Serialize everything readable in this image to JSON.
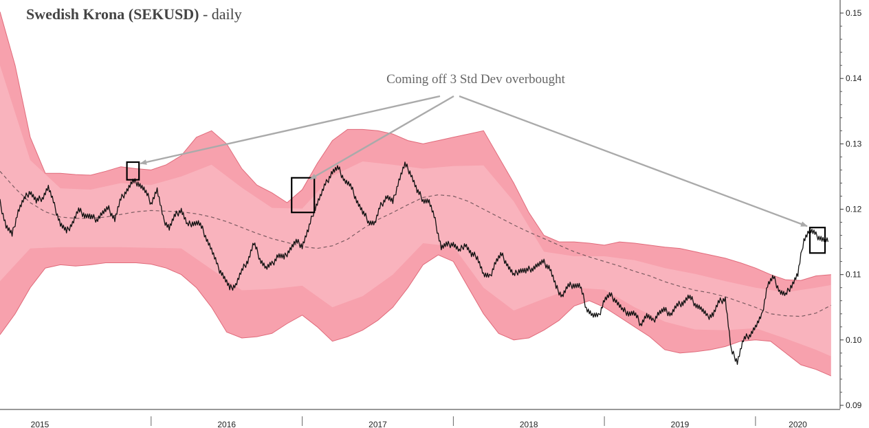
{
  "chart_data": {
    "type": "line",
    "title": "Swedish Krona (SEKUSD)",
    "subtitle": "daily",
    "xlabel": "",
    "ylabel": "",
    "x_tick_labels": [
      "2015",
      "2016",
      "2017",
      "2018",
      "2019",
      "2020"
    ],
    "y_tick_labels": [
      "0.15",
      "0.14",
      "0.13",
      "0.12",
      "0.11",
      "0.10",
      "0.09"
    ],
    "ylim": [
      0.09,
      0.152
    ],
    "xlim": [
      2015.0,
      2020.56
    ],
    "grid": false,
    "annotation": {
      "text": "Coming off 3 Std Dev overbought",
      "boxes": [
        {
          "x": [
            2015.84,
            2015.92
          ],
          "y": [
            0.1245,
            0.1272
          ]
        },
        {
          "x": [
            2016.93,
            2017.08
          ],
          "y": [
            0.1195,
            0.1248
          ]
        },
        {
          "x": [
            2020.36,
            2020.46
          ],
          "y": [
            0.1133,
            0.1172
          ]
        }
      ]
    },
    "series": [
      {
        "role": "price",
        "x": [
          2015.0,
          2015.04,
          2015.08,
          2015.12,
          2015.16,
          2015.2,
          2015.24,
          2015.28,
          2015.32,
          2015.36,
          2015.4,
          2015.44,
          2015.48,
          2015.52,
          2015.56,
          2015.6,
          2015.64,
          2015.68,
          2015.72,
          2015.76,
          2015.8,
          2015.84,
          2015.88,
          2015.92,
          2015.96,
          2016.0,
          2016.04,
          2016.08,
          2016.12,
          2016.16,
          2016.2,
          2016.24,
          2016.28,
          2016.32,
          2016.36,
          2016.4,
          2016.44,
          2016.48,
          2016.52,
          2016.56,
          2016.6,
          2016.64,
          2016.68,
          2016.72,
          2016.76,
          2016.8,
          2016.84,
          2016.88,
          2016.92,
          2016.96,
          2017.0,
          2017.04,
          2017.08,
          2017.12,
          2017.16,
          2017.2,
          2017.24,
          2017.28,
          2017.32,
          2017.36,
          2017.4,
          2017.44,
          2017.48,
          2017.52,
          2017.56,
          2017.6,
          2017.64,
          2017.68,
          2017.72,
          2017.76,
          2017.8,
          2017.84,
          2017.88,
          2017.92,
          2017.96,
          2018.0,
          2018.04,
          2018.08,
          2018.12,
          2018.16,
          2018.2,
          2018.24,
          2018.28,
          2018.32,
          2018.36,
          2018.4,
          2018.44,
          2018.48,
          2018.52,
          2018.56,
          2018.6,
          2018.64,
          2018.68,
          2018.72,
          2018.76,
          2018.8,
          2018.84,
          2018.88,
          2018.92,
          2018.96,
          2019.0,
          2019.04,
          2019.08,
          2019.12,
          2019.16,
          2019.2,
          2019.24,
          2019.28,
          2019.32,
          2019.36,
          2019.4,
          2019.44,
          2019.48,
          2019.52,
          2019.56,
          2019.6,
          2019.64,
          2019.68,
          2019.72,
          2019.76,
          2019.8,
          2019.84,
          2019.88,
          2019.92,
          2019.96,
          2020.0,
          2020.04,
          2020.08,
          2020.12,
          2020.16,
          2020.2,
          2020.24,
          2020.28,
          2020.32,
          2020.36,
          2020.4,
          2020.44,
          2020.48
        ],
        "values": [
          0.121,
          0.1175,
          0.116,
          0.1198,
          0.1215,
          0.1228,
          0.1212,
          0.1218,
          0.1234,
          0.1205,
          0.1178,
          0.1165,
          0.118,
          0.1198,
          0.1192,
          0.1188,
          0.1185,
          0.1195,
          0.12,
          0.1185,
          0.1215,
          0.123,
          0.1242,
          0.124,
          0.1228,
          0.121,
          0.123,
          0.1185,
          0.1172,
          0.119,
          0.12,
          0.1175,
          0.118,
          0.1178,
          0.116,
          0.1138,
          0.1112,
          0.1098,
          0.1078,
          0.1085,
          0.1105,
          0.1122,
          0.1148,
          0.1125,
          0.111,
          0.1115,
          0.113,
          0.1125,
          0.114,
          0.115,
          0.1145,
          0.1168,
          0.12,
          0.122,
          0.124,
          0.1258,
          0.1262,
          0.1245,
          0.1235,
          0.1215,
          0.1195,
          0.1182,
          0.1178,
          0.1205,
          0.122,
          0.121,
          0.1245,
          0.1268,
          0.1255,
          0.1228,
          0.1215,
          0.1212,
          0.1182,
          0.1142,
          0.1145,
          0.1148,
          0.1135,
          0.1148,
          0.113,
          0.1128,
          0.11,
          0.1095,
          0.112,
          0.113,
          0.1115,
          0.1098,
          0.1108,
          0.1105,
          0.111,
          0.1115,
          0.1118,
          0.111,
          0.108,
          0.1068,
          0.1082,
          0.1085,
          0.1082,
          0.105,
          0.1038,
          0.1035,
          0.1062,
          0.1068,
          0.106,
          0.1045,
          0.1042,
          0.104,
          0.1025,
          0.1038,
          0.1028,
          0.1042,
          0.1045,
          0.104,
          0.1052,
          0.1058,
          0.1066,
          0.1056,
          0.1048,
          0.1035,
          0.104,
          0.1058,
          0.1064,
          0.0982,
          0.0968,
          0.1,
          0.1008,
          0.102,
          0.1035,
          0.1085,
          0.1095,
          0.1075,
          0.1068,
          0.1085,
          0.11,
          0.1155,
          0.1168,
          0.116,
          0.1155,
          0.115
        ]
      },
      {
        "role": "moving-average",
        "x": [
          2015.0,
          2015.1,
          2015.2,
          2015.3,
          2015.4,
          2015.5,
          2015.6,
          2015.7,
          2015.8,
          2015.9,
          2016.0,
          2016.1,
          2016.2,
          2016.3,
          2016.4,
          2016.5,
          2016.6,
          2016.7,
          2016.8,
          2016.9,
          2017.0,
          2017.1,
          2017.2,
          2017.3,
          2017.4,
          2017.5,
          2017.6,
          2017.7,
          2017.8,
          2017.9,
          2018.0,
          2018.1,
          2018.2,
          2018.3,
          2018.4,
          2018.5,
          2018.6,
          2018.7,
          2018.8,
          2018.9,
          2019.0,
          2019.1,
          2019.2,
          2019.3,
          2019.4,
          2019.5,
          2019.6,
          2019.7,
          2019.8,
          2019.9,
          2020.0,
          2020.1,
          2020.2,
          2020.3,
          2020.4,
          2020.5
        ],
        "values": [
          0.1258,
          0.1232,
          0.121,
          0.1196,
          0.1188,
          0.1186,
          0.1186,
          0.1188,
          0.1192,
          0.1196,
          0.1198,
          0.1197,
          0.1196,
          0.1193,
          0.1188,
          0.1181,
          0.1172,
          0.1163,
          0.1155,
          0.1149,
          0.1143,
          0.114,
          0.1144,
          0.1154,
          0.117,
          0.1184,
          0.1195,
          0.1207,
          0.1218,
          0.1222,
          0.122,
          0.1212,
          0.12,
          0.1188,
          0.1176,
          0.1165,
          0.1155,
          0.1145,
          0.1135,
          0.1127,
          0.112,
          0.1113,
          0.1105,
          0.1098,
          0.1089,
          0.1082,
          0.1076,
          0.1072,
          0.1066,
          0.1058,
          0.105,
          0.104,
          0.1037,
          0.1036,
          0.1041,
          0.1053
        ]
      },
      {
        "role": "band-upper-3sd",
        "x": [
          2015.0,
          2015.1,
          2015.2,
          2015.3,
          2015.4,
          2015.5,
          2015.6,
          2015.7,
          2015.8,
          2015.9,
          2016.0,
          2016.1,
          2016.2,
          2016.3,
          2016.4,
          2016.5,
          2016.6,
          2016.7,
          2016.8,
          2016.9,
          2017.0,
          2017.1,
          2017.2,
          2017.3,
          2017.4,
          2017.5,
          2017.6,
          2017.7,
          2017.8,
          2017.9,
          2018.0,
          2018.1,
          2018.2,
          2018.3,
          2018.4,
          2018.5,
          2018.6,
          2018.7,
          2018.8,
          2018.9,
          2019.0,
          2019.1,
          2019.2,
          2019.3,
          2019.4,
          2019.5,
          2019.6,
          2019.7,
          2019.8,
          2019.9,
          2020.0,
          2020.1,
          2020.2,
          2020.3,
          2020.4,
          2020.5
        ],
        "values": [
          0.1502,
          0.142,
          0.131,
          0.1255,
          0.1255,
          0.1253,
          0.1252,
          0.1258,
          0.1265,
          0.1262,
          0.126,
          0.1268,
          0.1282,
          0.131,
          0.132,
          0.13,
          0.1262,
          0.1237,
          0.1225,
          0.121,
          0.123,
          0.127,
          0.1305,
          0.1322,
          0.1322,
          0.132,
          0.1315,
          0.1305,
          0.13,
          0.1305,
          0.131,
          0.1315,
          0.132,
          0.128,
          0.124,
          0.1195,
          0.116,
          0.115,
          0.115,
          0.1148,
          0.1145,
          0.115,
          0.1148,
          0.1145,
          0.1142,
          0.114,
          0.1135,
          0.113,
          0.1125,
          0.1118,
          0.111,
          0.11,
          0.1092,
          0.1091,
          0.1098,
          0.11
        ]
      },
      {
        "role": "band-lower-3sd",
        "x": [
          2015.0,
          2015.1,
          2015.2,
          2015.3,
          2015.4,
          2015.5,
          2015.6,
          2015.7,
          2015.8,
          2015.9,
          2016.0,
          2016.1,
          2016.2,
          2016.3,
          2016.4,
          2016.5,
          2016.6,
          2016.7,
          2016.8,
          2016.9,
          2017.0,
          2017.1,
          2017.2,
          2017.3,
          2017.4,
          2017.5,
          2017.6,
          2017.7,
          2017.8,
          2017.9,
          2018.0,
          2018.1,
          2018.2,
          2018.3,
          2018.4,
          2018.5,
          2018.6,
          2018.7,
          2018.8,
          2018.9,
          2019.0,
          2019.1,
          2019.2,
          2019.3,
          2019.4,
          2019.5,
          2019.6,
          2019.7,
          2019.8,
          2019.9,
          2020.0,
          2020.1,
          2020.2,
          2020.3,
          2020.4,
          2020.5
        ],
        "values": [
          0.1008,
          0.104,
          0.108,
          0.111,
          0.1115,
          0.1113,
          0.1115,
          0.1118,
          0.1118,
          0.1118,
          0.1116,
          0.111,
          0.11,
          0.108,
          0.105,
          0.1012,
          0.1003,
          0.1005,
          0.101,
          0.1025,
          0.1038,
          0.102,
          0.0998,
          0.1005,
          0.1015,
          0.103,
          0.105,
          0.108,
          0.1115,
          0.113,
          0.112,
          0.108,
          0.104,
          0.101,
          0.1,
          0.1003,
          0.1015,
          0.103,
          0.1052,
          0.106,
          0.105,
          0.1035,
          0.102,
          0.1005,
          0.0985,
          0.098,
          0.0982,
          0.0985,
          0.099,
          0.0998,
          0.1,
          0.0998,
          0.098,
          0.0962,
          0.0955,
          0.0945
        ]
      },
      {
        "role": "band-upper-2sd",
        "x": [
          2015.0,
          2015.2,
          2015.4,
          2015.6,
          2015.8,
          2016.0,
          2016.2,
          2016.4,
          2016.6,
          2016.8,
          2017.0,
          2017.2,
          2017.4,
          2017.6,
          2017.8,
          2018.0,
          2018.2,
          2018.4,
          2018.6,
          2018.8,
          2019.0,
          2019.2,
          2019.4,
          2019.6,
          2019.8,
          2020.0,
          2020.2,
          2020.4,
          2020.5
        ],
        "values": [
          0.142,
          0.1275,
          0.1232,
          0.123,
          0.124,
          0.1237,
          0.125,
          0.1268,
          0.1233,
          0.1202,
          0.1201,
          0.1251,
          0.1273,
          0.1268,
          0.1262,
          0.1266,
          0.1267,
          0.1212,
          0.1135,
          0.1128,
          0.1128,
          0.1122,
          0.111,
          0.1101,
          0.109,
          0.108,
          0.1073,
          0.108,
          0.1084
        ]
      },
      {
        "role": "band-lower-2sd",
        "x": [
          2015.0,
          2015.2,
          2015.4,
          2015.6,
          2015.8,
          2016.0,
          2016.2,
          2016.4,
          2016.6,
          2016.8,
          2017.0,
          2017.2,
          2017.4,
          2017.6,
          2017.8,
          2018.0,
          2018.2,
          2018.4,
          2018.6,
          2018.8,
          2019.0,
          2019.2,
          2019.4,
          2019.6,
          2019.8,
          2020.0,
          2020.2,
          2020.4,
          2020.5
        ],
        "values": [
          0.109,
          0.114,
          0.1142,
          0.1142,
          0.1142,
          0.1141,
          0.114,
          0.1108,
          0.1076,
          0.1078,
          0.1083,
          0.105,
          0.1067,
          0.11,
          0.1148,
          0.1143,
          0.108,
          0.1045,
          0.1063,
          0.108,
          0.1077,
          0.105,
          0.1028,
          0.1016,
          0.1015,
          0.1018,
          0.1002,
          0.0985,
          0.0975
        ]
      }
    ],
    "colors": {
      "band_outer": "#f7a1ad",
      "band_inner": "#fbc3cb",
      "band_edge": "#e06a7a",
      "price": "#111111",
      "moving_average": "#7a5a60",
      "annotation": "#aaaaaa",
      "box": "#000000"
    }
  }
}
